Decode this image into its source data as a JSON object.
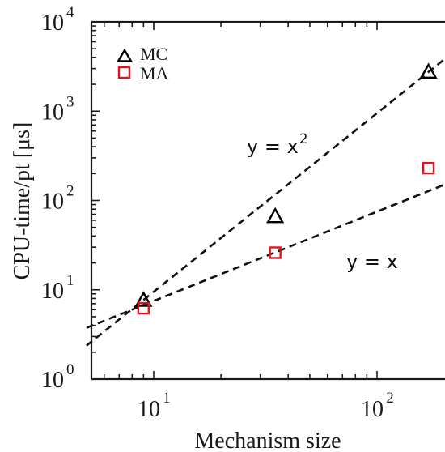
{
  "chart_data": {
    "type": "scatter",
    "xlabel": "Mechanism size",
    "ylabel": "CPU-time/pt [μs]",
    "x_scale": "log",
    "y_scale": "log",
    "xlim": [
      5,
      180
    ],
    "ylim": [
      1,
      10000
    ],
    "x_major_ticks": [
      {
        "value": 10,
        "base": "10",
        "exp": "1"
      },
      {
        "value": 100,
        "base": "10",
        "exp": "2"
      }
    ],
    "y_major_ticks": [
      {
        "value": 1,
        "base": "10",
        "exp": "0"
      },
      {
        "value": 10,
        "base": "10",
        "exp": "1"
      },
      {
        "value": 100,
        "base": "10",
        "exp": "2"
      },
      {
        "value": 1000,
        "base": "10",
        "exp": "3"
      },
      {
        "value": 10000,
        "base": "10",
        "exp": "4"
      }
    ],
    "grid": false,
    "legend_position": "top-left",
    "series": [
      {
        "name": "MC",
        "marker": "triangle",
        "color": "#000000",
        "points": [
          {
            "x": 9,
            "y": 7.5
          },
          {
            "x": 35,
            "y": 65
          },
          {
            "x": 170,
            "y": 2700
          }
        ]
      },
      {
        "name": "MA",
        "marker": "square",
        "color": "#e0151b",
        "points": [
          {
            "x": 9,
            "y": 6.2
          },
          {
            "x": 35,
            "y": 26
          },
          {
            "x": 170,
            "y": 230
          }
        ]
      }
    ],
    "reference_lines": [
      {
        "id": "quadratic",
        "label_prefix": "y = x",
        "label_exponent": "2",
        "exponent": 2,
        "coefficient": 0.095,
        "style": "dashed",
        "color": "#000000"
      },
      {
        "id": "linear",
        "label_prefix": "y = x",
        "label_exponent": "",
        "exponent": 1,
        "coefficient": 0.75,
        "style": "dashed",
        "color": "#000000"
      }
    ]
  }
}
